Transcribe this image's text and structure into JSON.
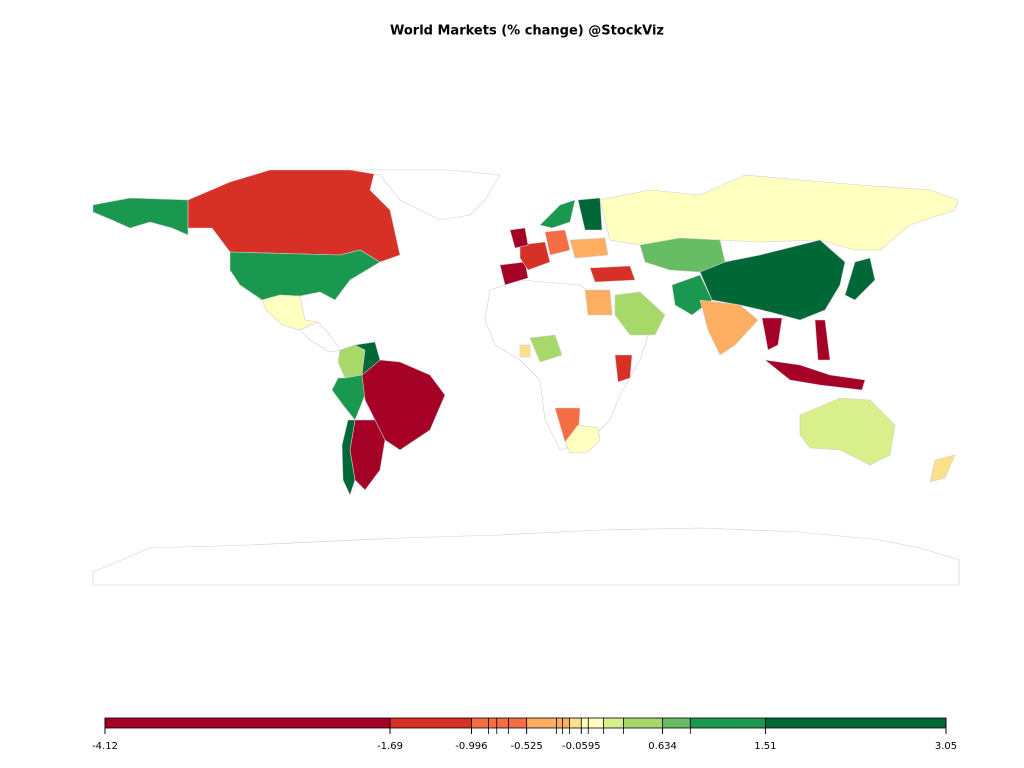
{
  "title": "World Markets (% change) @StockViz",
  "legend": {
    "range": [
      -4.12,
      3.05
    ],
    "breaks": [
      -4.12,
      -1.69,
      -0.996,
      -0.85,
      -0.78,
      -0.68,
      -0.525,
      -0.27,
      -0.22,
      -0.16,
      -0.0595,
      0.0,
      0.13,
      0.3,
      0.634,
      0.87,
      1.51,
      3.05
    ],
    "colors": [
      "#a50026",
      "#d73027",
      "#f46d43",
      "#f46d43",
      "#f46d43",
      "#f46d43",
      "#fdae61",
      "#fdae61",
      "#fdae61",
      "#fee08b",
      "#ffffbf",
      "#ffffbf",
      "#d9ef8b",
      "#a6d96a",
      "#66bd63",
      "#1a9850",
      "#006837"
    ],
    "ticks": [
      -4.12,
      -1.69,
      -0.996,
      -0.525,
      -0.0595,
      0.634,
      1.51,
      3.05
    ]
  }
}
